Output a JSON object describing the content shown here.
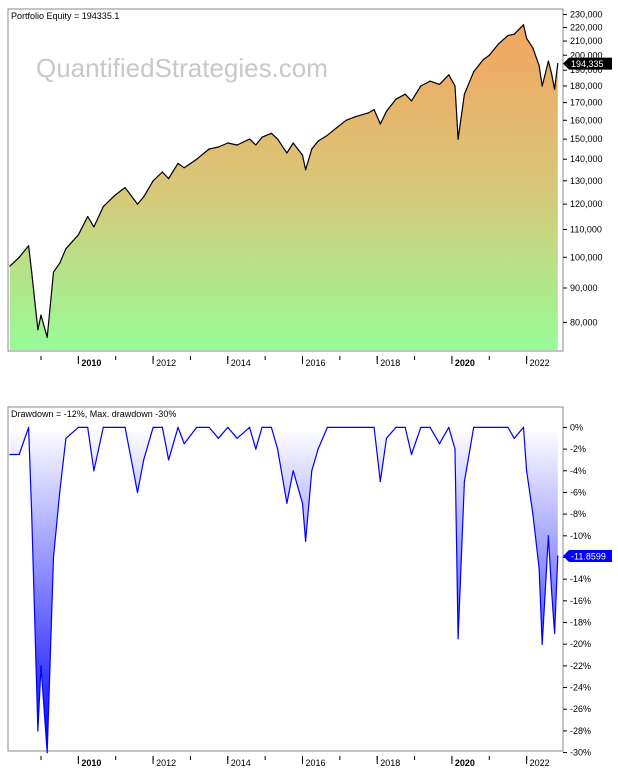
{
  "watermark": "QuantifiedStrategies.com",
  "chart_data": [
    {
      "type": "area",
      "title": "Portfolio Equity = 194335.1",
      "scale": "log",
      "ylim": [
        73000,
        232000
      ],
      "y_ticks": [
        80000,
        90000,
        100000,
        110000,
        120000,
        130000,
        140000,
        150000,
        160000,
        170000,
        180000,
        190000,
        200000,
        210000,
        220000,
        230000
      ],
      "y_tick_labels": [
        "80,000",
        "90,000",
        "100,000",
        "110,000",
        "120,000",
        "130,000",
        "140,000",
        "150,000",
        "160,000",
        "170,000",
        "180,000",
        "190,000",
        "200,000",
        "210,000",
        "220,000",
        "230,000"
      ],
      "last_value": 194335,
      "last_value_label": "194,335",
      "grid": false,
      "fill_colors": {
        "top": "#f4a460",
        "bottom": "#98fb98"
      },
      "line_color": "#000000",
      "x": [
        "2008-03",
        "2008-06",
        "2008-09",
        "2008-10",
        "2008-11",
        "2008-12",
        "2009-01",
        "2009-03",
        "2009-05",
        "2009-07",
        "2009-09",
        "2010-01",
        "2010-04",
        "2010-06",
        "2010-09",
        "2011-01",
        "2011-04",
        "2011-08",
        "2011-10",
        "2012-01",
        "2012-04",
        "2012-06",
        "2012-09",
        "2012-11",
        "2013-03",
        "2013-07",
        "2013-10",
        "2014-01",
        "2014-04",
        "2014-08",
        "2014-10",
        "2014-12",
        "2015-03",
        "2015-05",
        "2015-08",
        "2015-10",
        "2016-01",
        "2016-02",
        "2016-04",
        "2016-06",
        "2016-09",
        "2016-12",
        "2017-03",
        "2017-06",
        "2017-10",
        "2017-12",
        "2018-02",
        "2018-04",
        "2018-07",
        "2018-10",
        "2018-12",
        "2019-03",
        "2019-06",
        "2019-09",
        "2019-12",
        "2020-02",
        "2020-03",
        "2020-05",
        "2020-08",
        "2020-11",
        "2021-01",
        "2021-04",
        "2021-07",
        "2021-09",
        "2021-12",
        "2022-01",
        "2022-03",
        "2022-05",
        "2022-06",
        "2022-08",
        "2022-09",
        "2022-10",
        "2022-11"
      ],
      "values": [
        97000,
        100000,
        104000,
        95000,
        86000,
        78000,
        82000,
        76000,
        95000,
        98000,
        103000,
        108000,
        115000,
        111000,
        119000,
        124000,
        127000,
        120000,
        123000,
        130000,
        134000,
        131000,
        138000,
        136000,
        140000,
        145000,
        146000,
        148000,
        147000,
        150000,
        147000,
        151000,
        153000,
        150000,
        143000,
        148000,
        142000,
        135000,
        145000,
        149000,
        152000,
        156000,
        160000,
        162000,
        164000,
        166000,
        158000,
        165000,
        172000,
        175000,
        171000,
        180000,
        183000,
        181000,
        187000,
        180000,
        150000,
        175000,
        189000,
        197000,
        200000,
        208000,
        214000,
        215000,
        222000,
        212000,
        205000,
        193000,
        180000,
        196000,
        188000,
        178000,
        194335
      ],
      "x_ticks": [
        "2010",
        "2012",
        "2014",
        "2016",
        "2018",
        "2020",
        "2022"
      ],
      "x_tick_bold": [
        "2010",
        "2020"
      ]
    },
    {
      "type": "area",
      "title": "Drawdown = -12%, Max. drawdown -30%",
      "ylim": [
        -30.5,
        0.5
      ],
      "y_ticks": [
        0,
        -2,
        -4,
        -6,
        -8,
        -10,
        -12,
        -14,
        -16,
        -18,
        -20,
        -22,
        -24,
        -26,
        -28,
        -30
      ],
      "y_tick_labels": [
        "0%",
        "-2%",
        "-4%",
        "-6%",
        "-8%",
        "-10%",
        "-12%",
        "-14%",
        "-16%",
        "-18%",
        "-20%",
        "-22%",
        "-24%",
        "-26%",
        "-28%",
        "-30%"
      ],
      "last_value": -11.8599,
      "last_value_label": "-11.8599",
      "grid": false,
      "line_color": "#0000ff",
      "fill_colors": {
        "top": "#ffffff",
        "bottom": "#0000ff"
      },
      "x": [
        "2008-03",
        "2008-06",
        "2008-09",
        "2008-10",
        "2008-11",
        "2008-12",
        "2009-01",
        "2009-03",
        "2009-05",
        "2009-07",
        "2009-09",
        "2010-01",
        "2010-04",
        "2010-06",
        "2010-09",
        "2011-01",
        "2011-04",
        "2011-08",
        "2011-10",
        "2012-01",
        "2012-04",
        "2012-06",
        "2012-09",
        "2012-11",
        "2013-03",
        "2013-07",
        "2013-10",
        "2014-01",
        "2014-04",
        "2014-08",
        "2014-10",
        "2014-12",
        "2015-03",
        "2015-05",
        "2015-08",
        "2015-10",
        "2016-01",
        "2016-02",
        "2016-04",
        "2016-06",
        "2016-09",
        "2016-12",
        "2017-03",
        "2017-06",
        "2017-10",
        "2017-12",
        "2018-02",
        "2018-04",
        "2018-07",
        "2018-10",
        "2018-12",
        "2019-03",
        "2019-06",
        "2019-09",
        "2019-12",
        "2020-02",
        "2020-03",
        "2020-05",
        "2020-08",
        "2020-11",
        "2021-01",
        "2021-04",
        "2021-07",
        "2021-09",
        "2021-12",
        "2022-01",
        "2022-03",
        "2022-05",
        "2022-06",
        "2022-08",
        "2022-09",
        "2022-10",
        "2022-11"
      ],
      "values": [
        -2.5,
        -2.5,
        0,
        -8,
        -18,
        -28,
        -22,
        -30,
        -12,
        -6,
        -1,
        0,
        0,
        -4,
        0,
        0,
        0,
        -6,
        -3,
        0,
        0,
        -3,
        0,
        -1.5,
        0,
        0,
        -1,
        0,
        -1,
        0,
        -2,
        0,
        0,
        -2,
        -7,
        -4,
        -7,
        -10.5,
        -4,
        -2,
        0,
        0,
        0,
        0,
        0,
        0,
        -5,
        -1,
        0,
        0,
        -2.5,
        0,
        0,
        -1.5,
        0,
        -2,
        -19.5,
        -5,
        0,
        0,
        0,
        0,
        0,
        -1,
        0,
        -4,
        -8,
        -13,
        -20,
        -10,
        -15,
        -19,
        -11.8599
      ],
      "x_ticks": [
        "2010",
        "2012",
        "2014",
        "2016",
        "2018",
        "2020",
        "2022"
      ],
      "x_tick_bold": [
        "2010",
        "2020"
      ]
    }
  ]
}
